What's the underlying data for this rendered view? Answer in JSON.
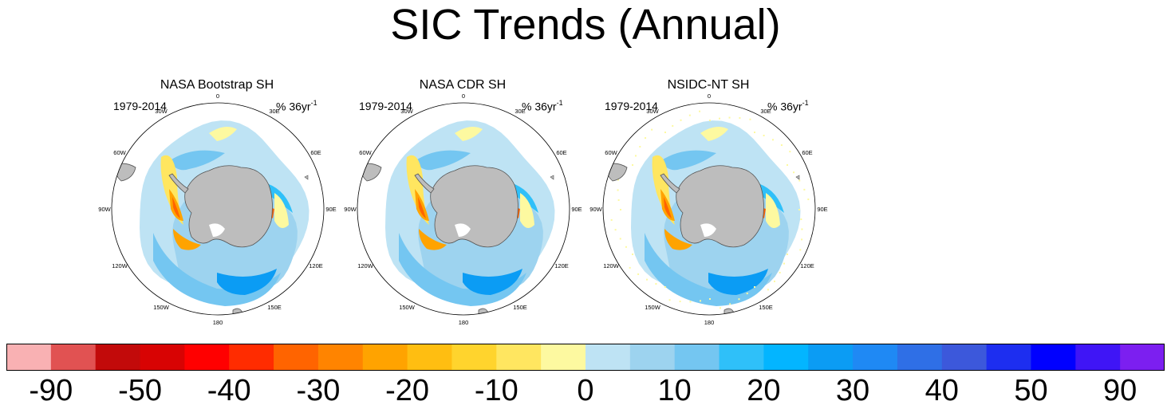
{
  "title": "SIC Trends (Annual)",
  "panels": [
    {
      "title": "NASA Bootstrap SH",
      "period": "1979-2014",
      "units": "% 36yr",
      "units_exp": "-1",
      "variant": "bootstrap"
    },
    {
      "title": "NASA CDR SH",
      "period": "1979-2014",
      "units": "% 36yr",
      "units_exp": "-1",
      "variant": "cdr"
    },
    {
      "title": "NSIDC-NT SH",
      "period": "1979-2014",
      "units": "% 36yr",
      "units_exp": "-1",
      "variant": "nt"
    }
  ],
  "longitude_labels": [
    "0",
    "30E",
    "60E",
    "90E",
    "120E",
    "150E",
    "180",
    "150W",
    "120W",
    "90W",
    "60W",
    "30W"
  ],
  "colorbar": {
    "colors": [
      "#f9b1b3",
      "#e15252",
      "#c20a0a",
      "#d80303",
      "#ff0000",
      "#ff2c00",
      "#ff6400",
      "#ff8400",
      "#ffa300",
      "#ffbe11",
      "#ffd42d",
      "#ffe660",
      "#fdf9a0",
      "#bee3f4",
      "#9dd3ef",
      "#74c6f1",
      "#2fc0f9",
      "#03b5ff",
      "#0b9cf4",
      "#1f89f4",
      "#2f6fe6",
      "#3c58db",
      "#1d2ef0",
      "#0000ff",
      "#3f15f6",
      "#7c1ff0"
    ],
    "labels": [
      "-90",
      "-50",
      "-40",
      "-30",
      "-20",
      "-10",
      "0",
      "10",
      "20",
      "30",
      "40",
      "50",
      "90"
    ]
  },
  "map_colors": {
    "land": "#bdbdbd",
    "land_outline": "#555555",
    "light_blue": "#bee3f4",
    "blue_1": "#9dd3ef",
    "blue_2": "#74c6f1",
    "blue_3": "#2fc0f9",
    "blue_4": "#0b9cf4",
    "yellow_1": "#fdf9a0",
    "yellow_2": "#ffe660",
    "orange": "#ffa300",
    "red": "#ff6400"
  }
}
